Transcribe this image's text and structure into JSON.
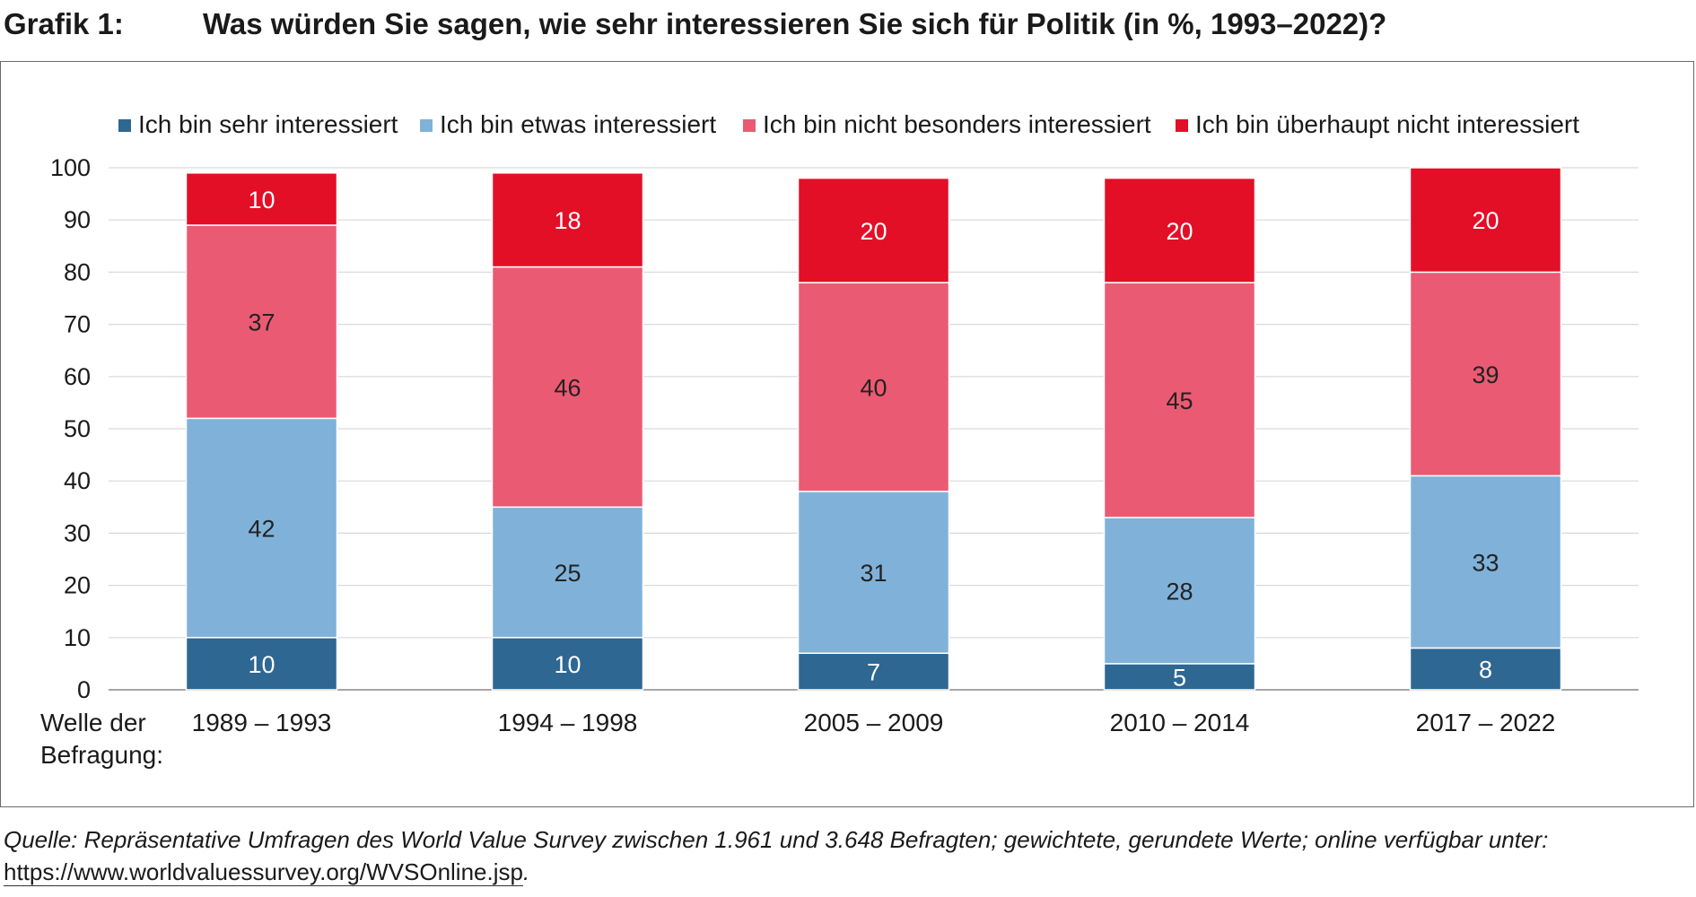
{
  "header": {
    "label": "Grafik 1:",
    "title": "Was würden Sie sagen, wie sehr interessieren Sie sich für Politik (in %, 1993–2022)?"
  },
  "footer": {
    "source": "Quelle: Repräsentative Umfragen des World Value Survey zwischen 1.961 und 3.648 Befragten; gewichtete, gerundete Werte; online verfügbar unter:",
    "url": "https://www.worldvaluessurvey.org/WVSOnline.jsp",
    "trailing": "."
  },
  "chart_data": {
    "type": "bar",
    "stacked": true,
    "title": "Was würden Sie sagen, wie sehr interessieren Sie sich für Politik (in %, 1993–2022)?",
    "xlabel": [
      "Welle der",
      "Befragung:"
    ],
    "ylabel": "",
    "ylim": [
      0,
      100
    ],
    "yticks": [
      0,
      10,
      20,
      30,
      40,
      50,
      60,
      70,
      80,
      90,
      100
    ],
    "grid": true,
    "legend_position": "top",
    "categories": [
      "1989 – 1993",
      "1994 – 1998",
      "2005 – 2009",
      "2010 – 2014",
      "2017 – 2022"
    ],
    "series": [
      {
        "name": "Ich bin sehr interessiert",
        "color": "#2e6792",
        "label_color": "#ffffff",
        "values": [
          10,
          10,
          7,
          5,
          8
        ]
      },
      {
        "name": "Ich bin etwas interessiert",
        "color": "#80b2d9",
        "label_color": "#222222",
        "values": [
          42,
          25,
          31,
          28,
          33
        ]
      },
      {
        "name": "Ich bin nicht besonders interessiert",
        "color": "#eb5a73",
        "label_color": "#222222",
        "values": [
          37,
          46,
          40,
          45,
          39
        ]
      },
      {
        "name": "Ich bin überhaupt nicht interessiert",
        "color": "#e30f26",
        "label_color": "#ffffff",
        "values": [
          10,
          18,
          20,
          20,
          20
        ]
      }
    ]
  }
}
